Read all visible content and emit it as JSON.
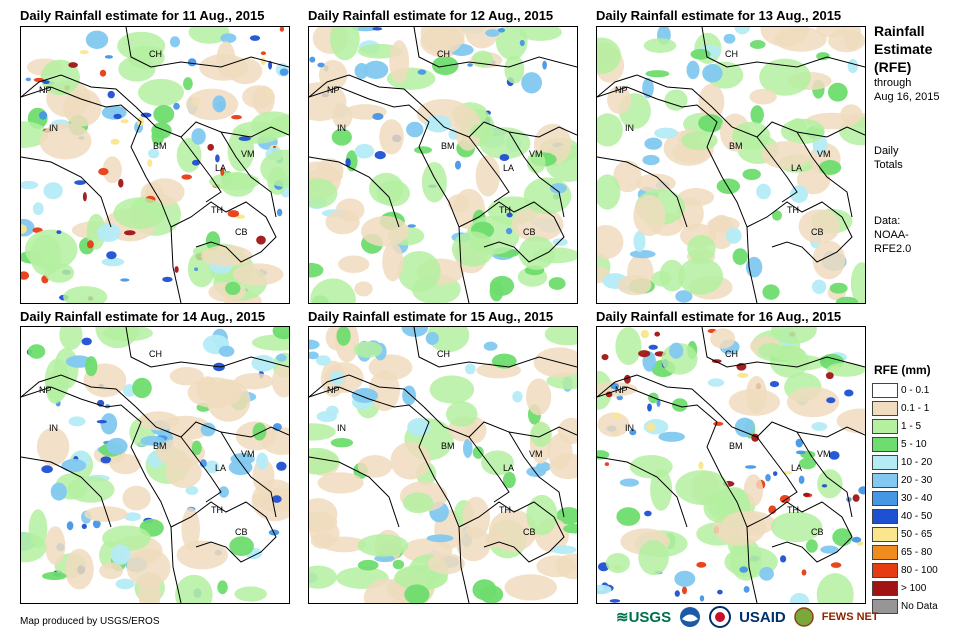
{
  "panels": [
    {
      "title": "Daily Rainfall estimate for 11 Aug., 2015",
      "scheme": "heavy"
    },
    {
      "title": "Daily Rainfall estimate for 12 Aug., 2015",
      "scheme": "moderate"
    },
    {
      "title": "Daily Rainfall estimate for 13 Aug., 2015",
      "scheme": "light"
    },
    {
      "title": "Daily Rainfall estimate for 14 Aug., 2015",
      "scheme": "moderate"
    },
    {
      "title": "Daily Rainfall estimate for 15 Aug., 2015",
      "scheme": "light"
    },
    {
      "title": "Daily Rainfall estimate for 16 Aug., 2015",
      "scheme": "heavy"
    }
  ],
  "country_labels": {
    "ch": "CH",
    "np": "NP",
    "in": "IN",
    "bm": "BM",
    "la": "LA",
    "vm": "VM",
    "th": "TH",
    "cb": "CB"
  },
  "sidebar": {
    "title1": "Rainfall",
    "title2": "Estimate",
    "title3": "(RFE)",
    "through": "through",
    "date": "Aug 16, 2015",
    "daily": "Daily",
    "totals": "Totals",
    "data_label": "Data:",
    "source1": "NOAA-",
    "source2": "RFE2.0"
  },
  "legend": {
    "title": "RFE (mm)",
    "items": [
      {
        "label": "0 - 0.1",
        "color": "#ffffff"
      },
      {
        "label": "0.1 - 1",
        "color": "#f0dcbe"
      },
      {
        "label": "1 - 5",
        "color": "#b4f0a0"
      },
      {
        "label": "5 - 10",
        "color": "#6edc6e"
      },
      {
        "label": "10 - 20",
        "color": "#b4ebf5"
      },
      {
        "label": "20 - 30",
        "color": "#82c8f0"
      },
      {
        "label": "30 - 40",
        "color": "#4696e6"
      },
      {
        "label": "40 - 50",
        "color": "#1e50d2"
      },
      {
        "label": "50 - 65",
        "color": "#fae68c"
      },
      {
        "label": "65 - 80",
        "color": "#f08c1e"
      },
      {
        "label": "80 - 100",
        "color": "#e63c14"
      },
      {
        "label": "> 100",
        "color": "#a01414"
      },
      {
        "label": "No Data",
        "color": "#969696"
      }
    ]
  },
  "credit": "Map produced by USGS/EROS",
  "logos": {
    "usgs": "≋USGS",
    "usaid": "USAID",
    "fewsnet": "FEWS NET"
  }
}
